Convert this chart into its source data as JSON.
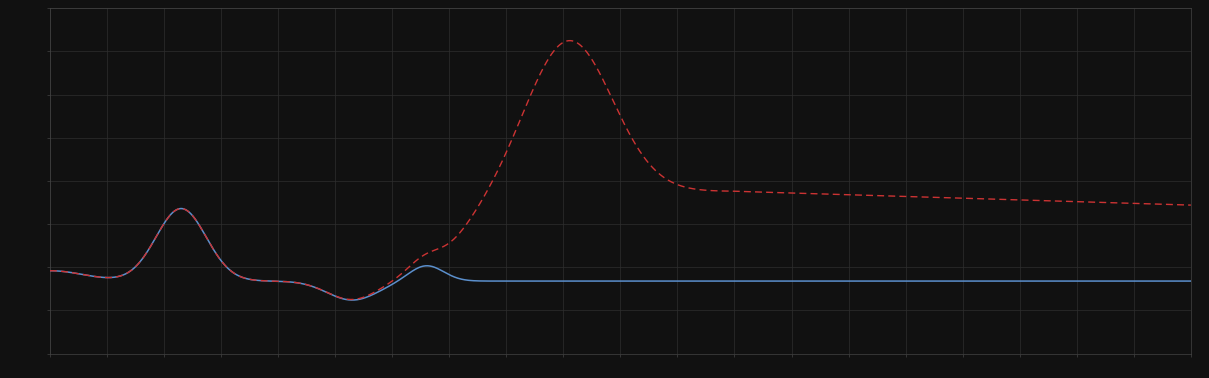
{
  "background_color": "#111111",
  "plot_bg_color": "#111111",
  "grid_color": "#2e2e2e",
  "blue_line_color": "#5b8fcc",
  "red_line_color": "#cc3333",
  "figsize": [
    12.09,
    3.78
  ],
  "dpi": 100,
  "xlim": [
    0,
    1
  ],
  "ylim": [
    0,
    1
  ],
  "x_ticks_count": 20,
  "y_ticks_count": 8
}
